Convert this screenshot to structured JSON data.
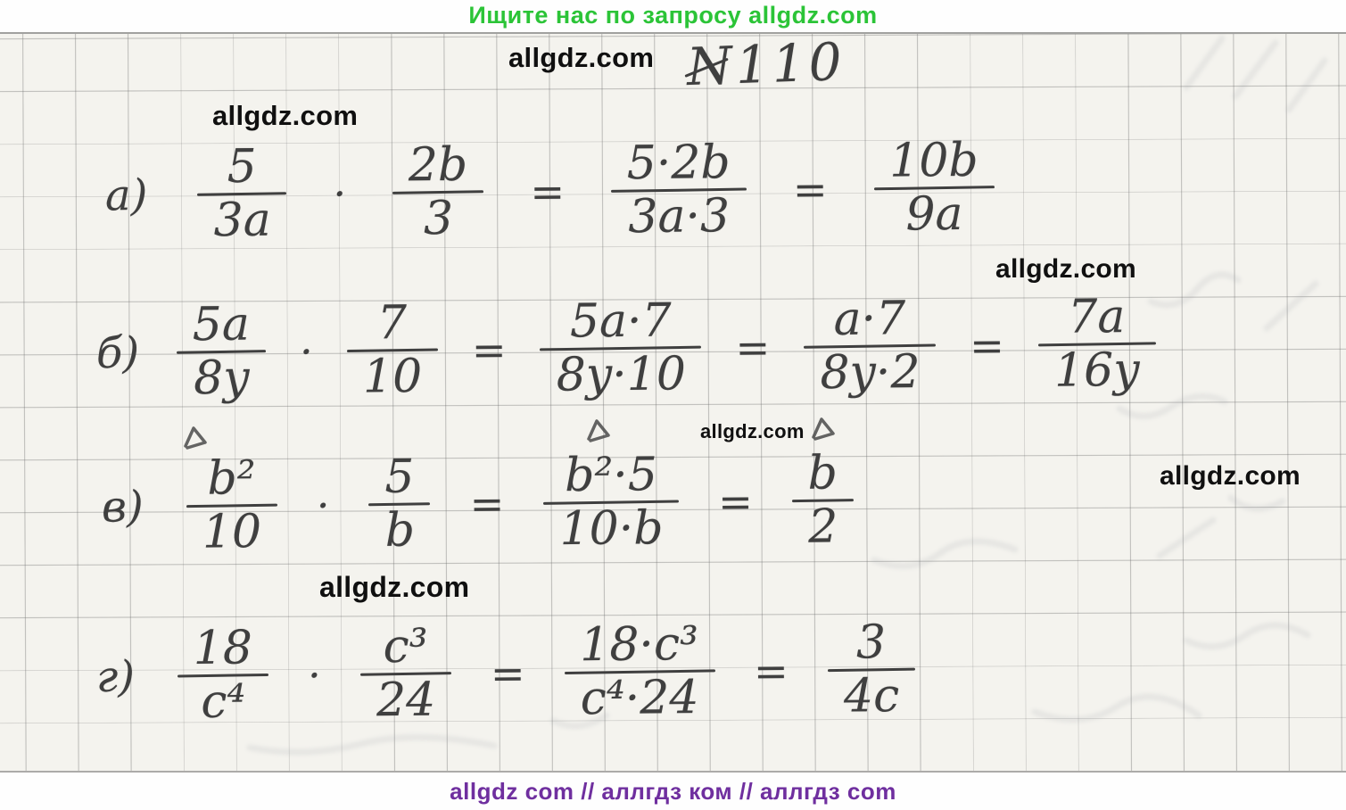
{
  "header": {
    "text": "Ищите нас по запросу allgdz.com",
    "color": "#2bc437"
  },
  "footer": {
    "text": "allgdz com  //  аллгдз ком  //  аллгдз com",
    "color": "#6f2f9f"
  },
  "watermark": {
    "text": "allgdz.com"
  },
  "page": {
    "problem_number": "N110"
  },
  "colors": {
    "ink": "#3f3f3f",
    "paper": "#f4f3ee"
  },
  "problems": [
    {
      "label": "а)",
      "items": [
        {
          "type": "frac",
          "num": "5",
          "den": "3a"
        },
        {
          "type": "op",
          "text": "·"
        },
        {
          "type": "frac",
          "num": "2b",
          "den": "3"
        },
        {
          "type": "op",
          "text": "="
        },
        {
          "type": "frac",
          "num": "5·2b",
          "den": "3a·3"
        },
        {
          "type": "op",
          "text": "="
        },
        {
          "type": "frac",
          "num": "10b",
          "den": "9a"
        }
      ]
    },
    {
      "label": "б)",
      "items": [
        {
          "type": "frac",
          "num": "5a",
          "den": "8y"
        },
        {
          "type": "op",
          "text": "·"
        },
        {
          "type": "frac",
          "num": "7",
          "den": "10"
        },
        {
          "type": "op",
          "text": "="
        },
        {
          "type": "frac",
          "num": "5a·7",
          "den": "8y·10"
        },
        {
          "type": "op",
          "text": "="
        },
        {
          "type": "frac",
          "num": "a·7",
          "den": "8y·2"
        },
        {
          "type": "op",
          "text": "="
        },
        {
          "type": "frac",
          "num": "7a",
          "den": "16y"
        }
      ]
    },
    {
      "label": "в)",
      "items": [
        {
          "type": "frac",
          "num": "b²",
          "den": "10"
        },
        {
          "type": "op",
          "text": "·"
        },
        {
          "type": "frac",
          "num": "5",
          "den": "b"
        },
        {
          "type": "op",
          "text": "="
        },
        {
          "type": "frac",
          "num": "b²·5",
          "den": "10·b"
        },
        {
          "type": "op",
          "text": "="
        },
        {
          "type": "frac",
          "num": "b",
          "den": "2"
        }
      ]
    },
    {
      "label": "г)",
      "items": [
        {
          "type": "frac",
          "num": "18",
          "den": "c⁴"
        },
        {
          "type": "op",
          "text": "·"
        },
        {
          "type": "frac",
          "num": "c³",
          "den": "24"
        },
        {
          "type": "op",
          "text": "="
        },
        {
          "type": "frac",
          "num": "18·c³",
          "den": "c⁴·24"
        },
        {
          "type": "op",
          "text": "="
        },
        {
          "type": "frac",
          "num": "3",
          "den": "4c"
        }
      ]
    }
  ]
}
